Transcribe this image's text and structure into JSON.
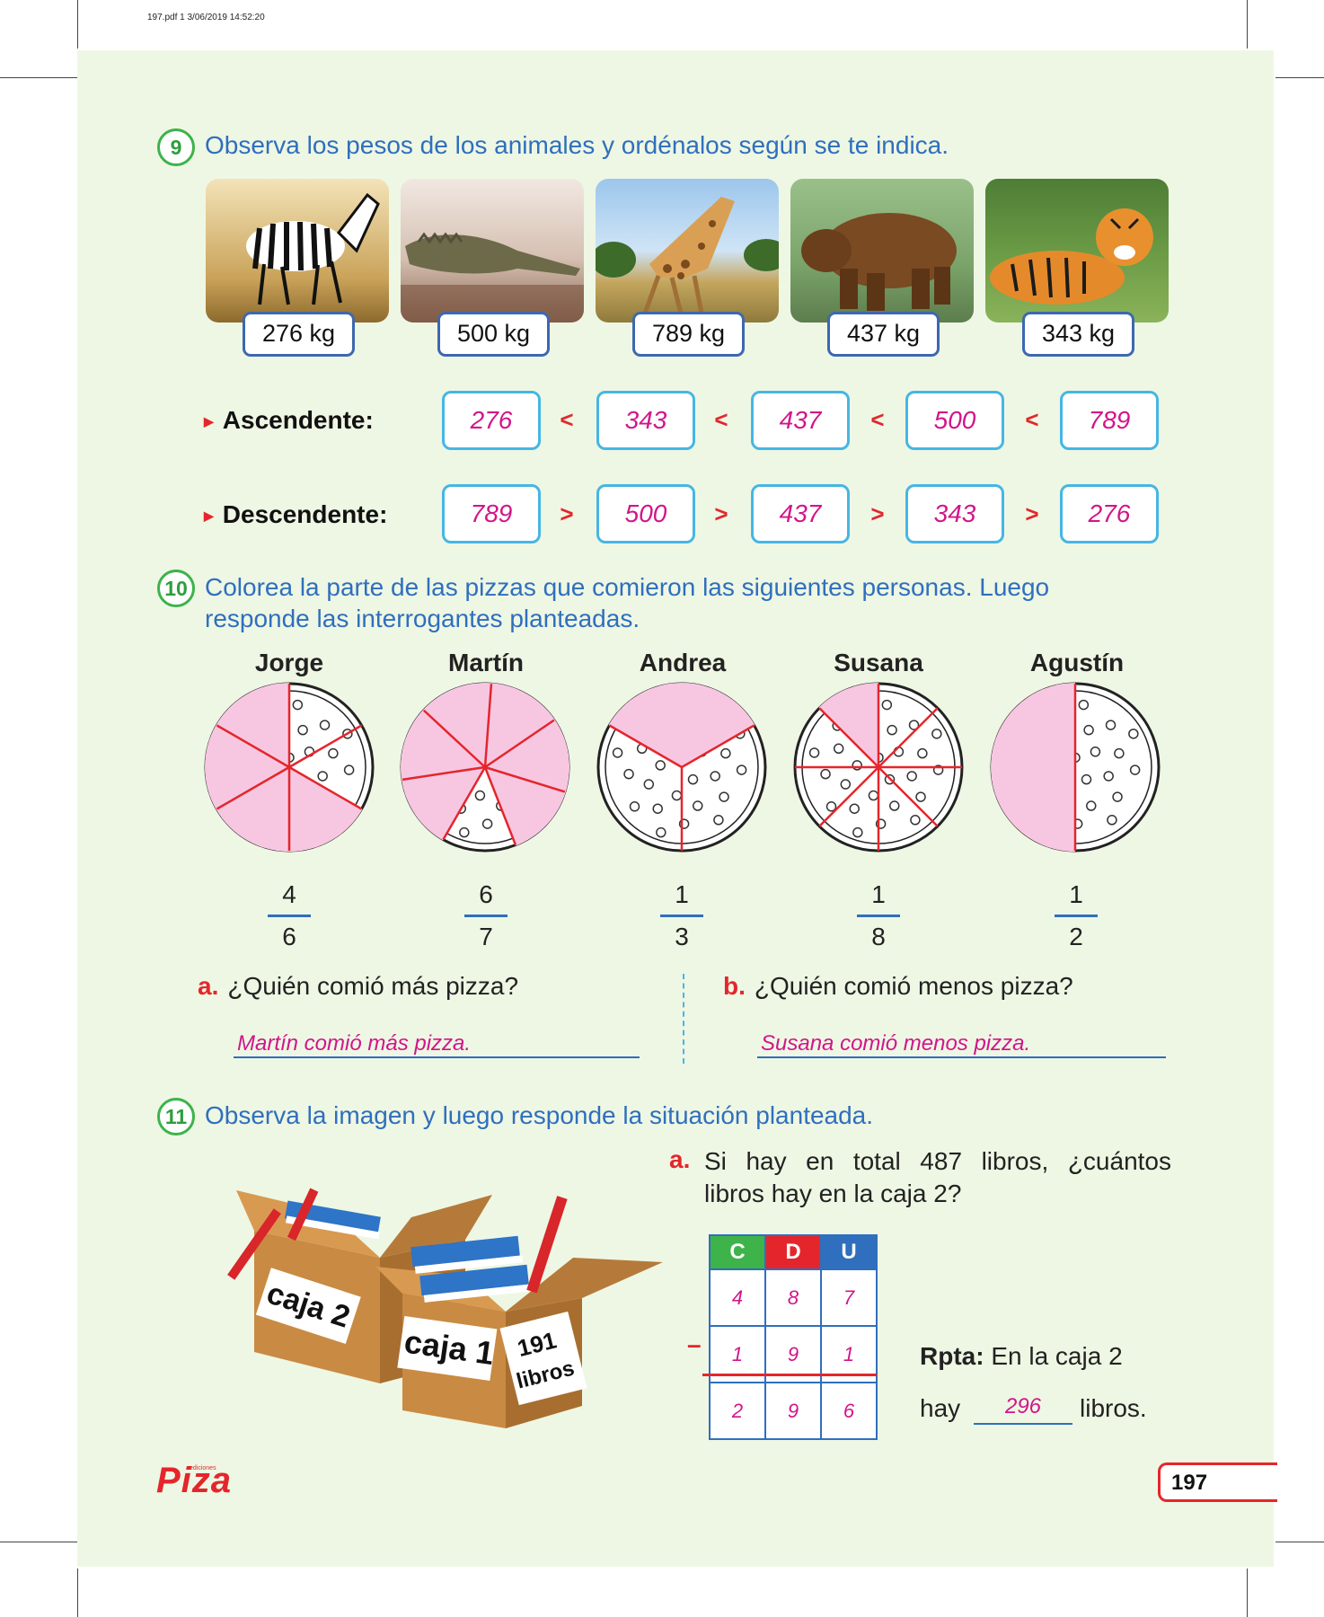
{
  "print_header": "197.pdf   1   3/06/2019   14:52:20",
  "q9": {
    "number": "9",
    "text": "Observa los pesos de los animales y ordénalos según se te indica.",
    "animals": [
      {
        "name": "zebra",
        "weight": "276 kg"
      },
      {
        "name": "crocodile",
        "weight": "500 kg"
      },
      {
        "name": "giraffe",
        "weight": "789 kg"
      },
      {
        "name": "bear",
        "weight": "437 kg"
      },
      {
        "name": "tiger",
        "weight": "343 kg"
      }
    ],
    "ascending": {
      "label": "Ascendente:",
      "symbol": "<",
      "values": [
        "276",
        "343",
        "437",
        "500",
        "789"
      ]
    },
    "descending": {
      "label": "Descendente:",
      "symbol": ">",
      "values": [
        "789",
        "500",
        "437",
        "343",
        "276"
      ]
    }
  },
  "q10": {
    "number": "10",
    "text_line1": "Colorea la parte de las pizzas que comieron las siguientes personas. Luego",
    "text_line2": "responde las interrogantes planteadas.",
    "people": [
      {
        "name": "Jorge",
        "num": "4",
        "den": "6"
      },
      {
        "name": "Martín",
        "num": "6",
        "den": "7"
      },
      {
        "name": "Andrea",
        "num": "1",
        "den": "3"
      },
      {
        "name": "Susana",
        "num": "1",
        "den": "8"
      },
      {
        "name": "Agustín",
        "num": "1",
        "den": "2"
      }
    ],
    "a": {
      "letter": "a.",
      "question": "¿Quién comió más pizza?",
      "answer": "Martín comió más pizza."
    },
    "b": {
      "letter": "b.",
      "question": "¿Quién comió menos pizza?",
      "answer": "Susana comió menos pizza."
    }
  },
  "q11": {
    "number": "11",
    "text": "Observa la imagen y luego responde la situación planteada.",
    "box2_label": "caja 2",
    "box1_label": "caja 1",
    "box1_count_line1": "191",
    "box1_count_line2": "libros",
    "a_letter": "a.",
    "a_line1": "Si hay en total 487 libros, ¿cuántos",
    "a_line2": "libros hay en la caja 2?",
    "table": {
      "headers": [
        "C",
        "D",
        "U"
      ],
      "header_colors": [
        "#3db34a",
        "#e4262c",
        "#2f6fbd"
      ],
      "row1": [
        "4",
        "8",
        "7"
      ],
      "row2": [
        "1",
        "9",
        "1"
      ],
      "row3": [
        "2",
        "9",
        "6"
      ],
      "minus": "–"
    },
    "rpta_label": "Rpta:",
    "rpta_line1": "En la caja 2",
    "rpta_hay": "hay",
    "rpta_value": "296",
    "rpta_end": "libros."
  },
  "footer": {
    "brand_small": "ediciones",
    "brand": "Piza",
    "page_number": "197"
  }
}
